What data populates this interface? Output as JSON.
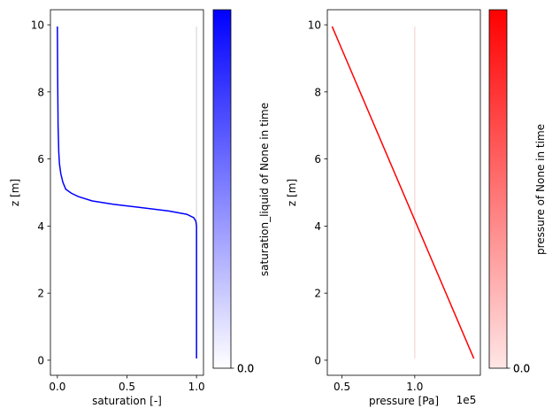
{
  "chart_data": [
    {
      "type": "line",
      "xlabel": "saturation [-]",
      "ylabel": "z [m]",
      "xlim": [
        -0.05,
        1.05
      ],
      "ylim": [
        -0.45,
        10.45
      ],
      "xticks": [
        0.0,
        0.5,
        1.0
      ],
      "xtick_labels": [
        "0.0",
        "0.5",
        "1.0"
      ],
      "yticks": [
        0,
        2,
        4,
        6,
        8,
        10
      ],
      "ytick_labels": [
        "0",
        "2",
        "4",
        "6",
        "8",
        "10"
      ],
      "grid": false,
      "series": [
        {
          "color": "#0000ff",
          "points": [
            [
              1.0,
              0.05
            ],
            [
              1.0,
              1.0
            ],
            [
              1.0,
              2.0
            ],
            [
              1.0,
              3.0
            ],
            [
              1.0,
              4.0
            ],
            [
              0.995,
              4.15
            ],
            [
              0.98,
              4.25
            ],
            [
              0.93,
              4.35
            ],
            [
              0.8,
              4.45
            ],
            [
              0.6,
              4.55
            ],
            [
              0.4,
              4.65
            ],
            [
              0.25,
              4.75
            ],
            [
              0.15,
              4.88
            ],
            [
              0.1,
              4.98
            ],
            [
              0.06,
              5.1
            ],
            [
              0.04,
              5.3
            ],
            [
              0.025,
              5.55
            ],
            [
              0.015,
              5.85
            ],
            [
              0.01,
              6.2
            ],
            [
              0.005,
              7.0
            ],
            [
              0.002,
              8.5
            ],
            [
              0.0,
              9.95
            ]
          ]
        },
        {
          "color": "#e0e0e0",
          "points": [
            [
              1.0,
              0.05
            ],
            [
              1.0,
              9.95
            ]
          ]
        }
      ],
      "colorbar": {
        "label": "saturation_liquid of None in time",
        "tick_labels": [
          "0.0",
          "0.0"
        ],
        "color_from": "#ffffff",
        "color_to": "#0000ff"
      }
    },
    {
      "type": "line",
      "xlabel": "pressure [Pa]",
      "ylabel": "z [m]",
      "x_offset_label": "1e5",
      "xlim": [
        0.399,
        1.451
      ],
      "ylim": [
        -0.45,
        10.45
      ],
      "xticks": [
        0.5,
        1.0
      ],
      "xtick_labels": [
        "0.5",
        "1.0"
      ],
      "yticks": [
        0,
        2,
        4,
        6,
        8,
        10
      ],
      "ytick_labels": [
        "0",
        "2",
        "4",
        "6",
        "8",
        "10"
      ],
      "grid": false,
      "series": [
        {
          "color": "#ff0000",
          "points": [
            [
              0.432,
              9.95
            ],
            [
              1.406,
              0.05
            ]
          ]
        },
        {
          "color": "#f5dede",
          "points": [
            [
              1.0,
              0.05
            ],
            [
              1.0,
              9.95
            ]
          ]
        }
      ],
      "colorbar": {
        "label": "pressure of None in time",
        "tick_labels": [
          "0.0",
          "0.0"
        ],
        "color_from": "#ffe6e6",
        "color_to": "#ff0000"
      }
    }
  ]
}
